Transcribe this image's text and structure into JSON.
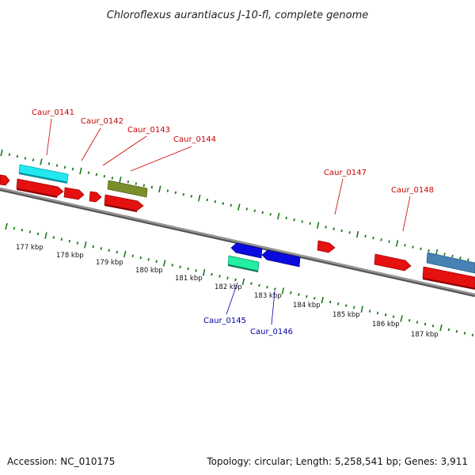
{
  "title": "Chloroflexus aurantiacus J-10-fl, complete genome",
  "footer": {
    "accession": "Accession: NC_010175",
    "summary": "Topology: circular; Length: 5,258,541 bp; Genes: 3,911"
  },
  "colors": {
    "background": "#ffffff",
    "backbone": "#808080",
    "ticks": "#1a7a1a",
    "forward_label": "#cc0000",
    "reverse_label": "#0000aa"
  },
  "scale_labels": [
    "177 kbp",
    "178 kbp",
    "179 kbp",
    "180 kbp",
    "181 kbp",
    "182 kbp",
    "183 kbp",
    "184 kbp",
    "185 kbp",
    "186 kbp",
    "187 kbp"
  ],
  "gene_labels": {
    "top": [
      "Caur_0141",
      "Caur_0142",
      "Caur_0143",
      "Caur_0144",
      "Caur_0147",
      "Caur_0148"
    ],
    "bottom": [
      "Caur_0145",
      "Caur_0146"
    ]
  }
}
